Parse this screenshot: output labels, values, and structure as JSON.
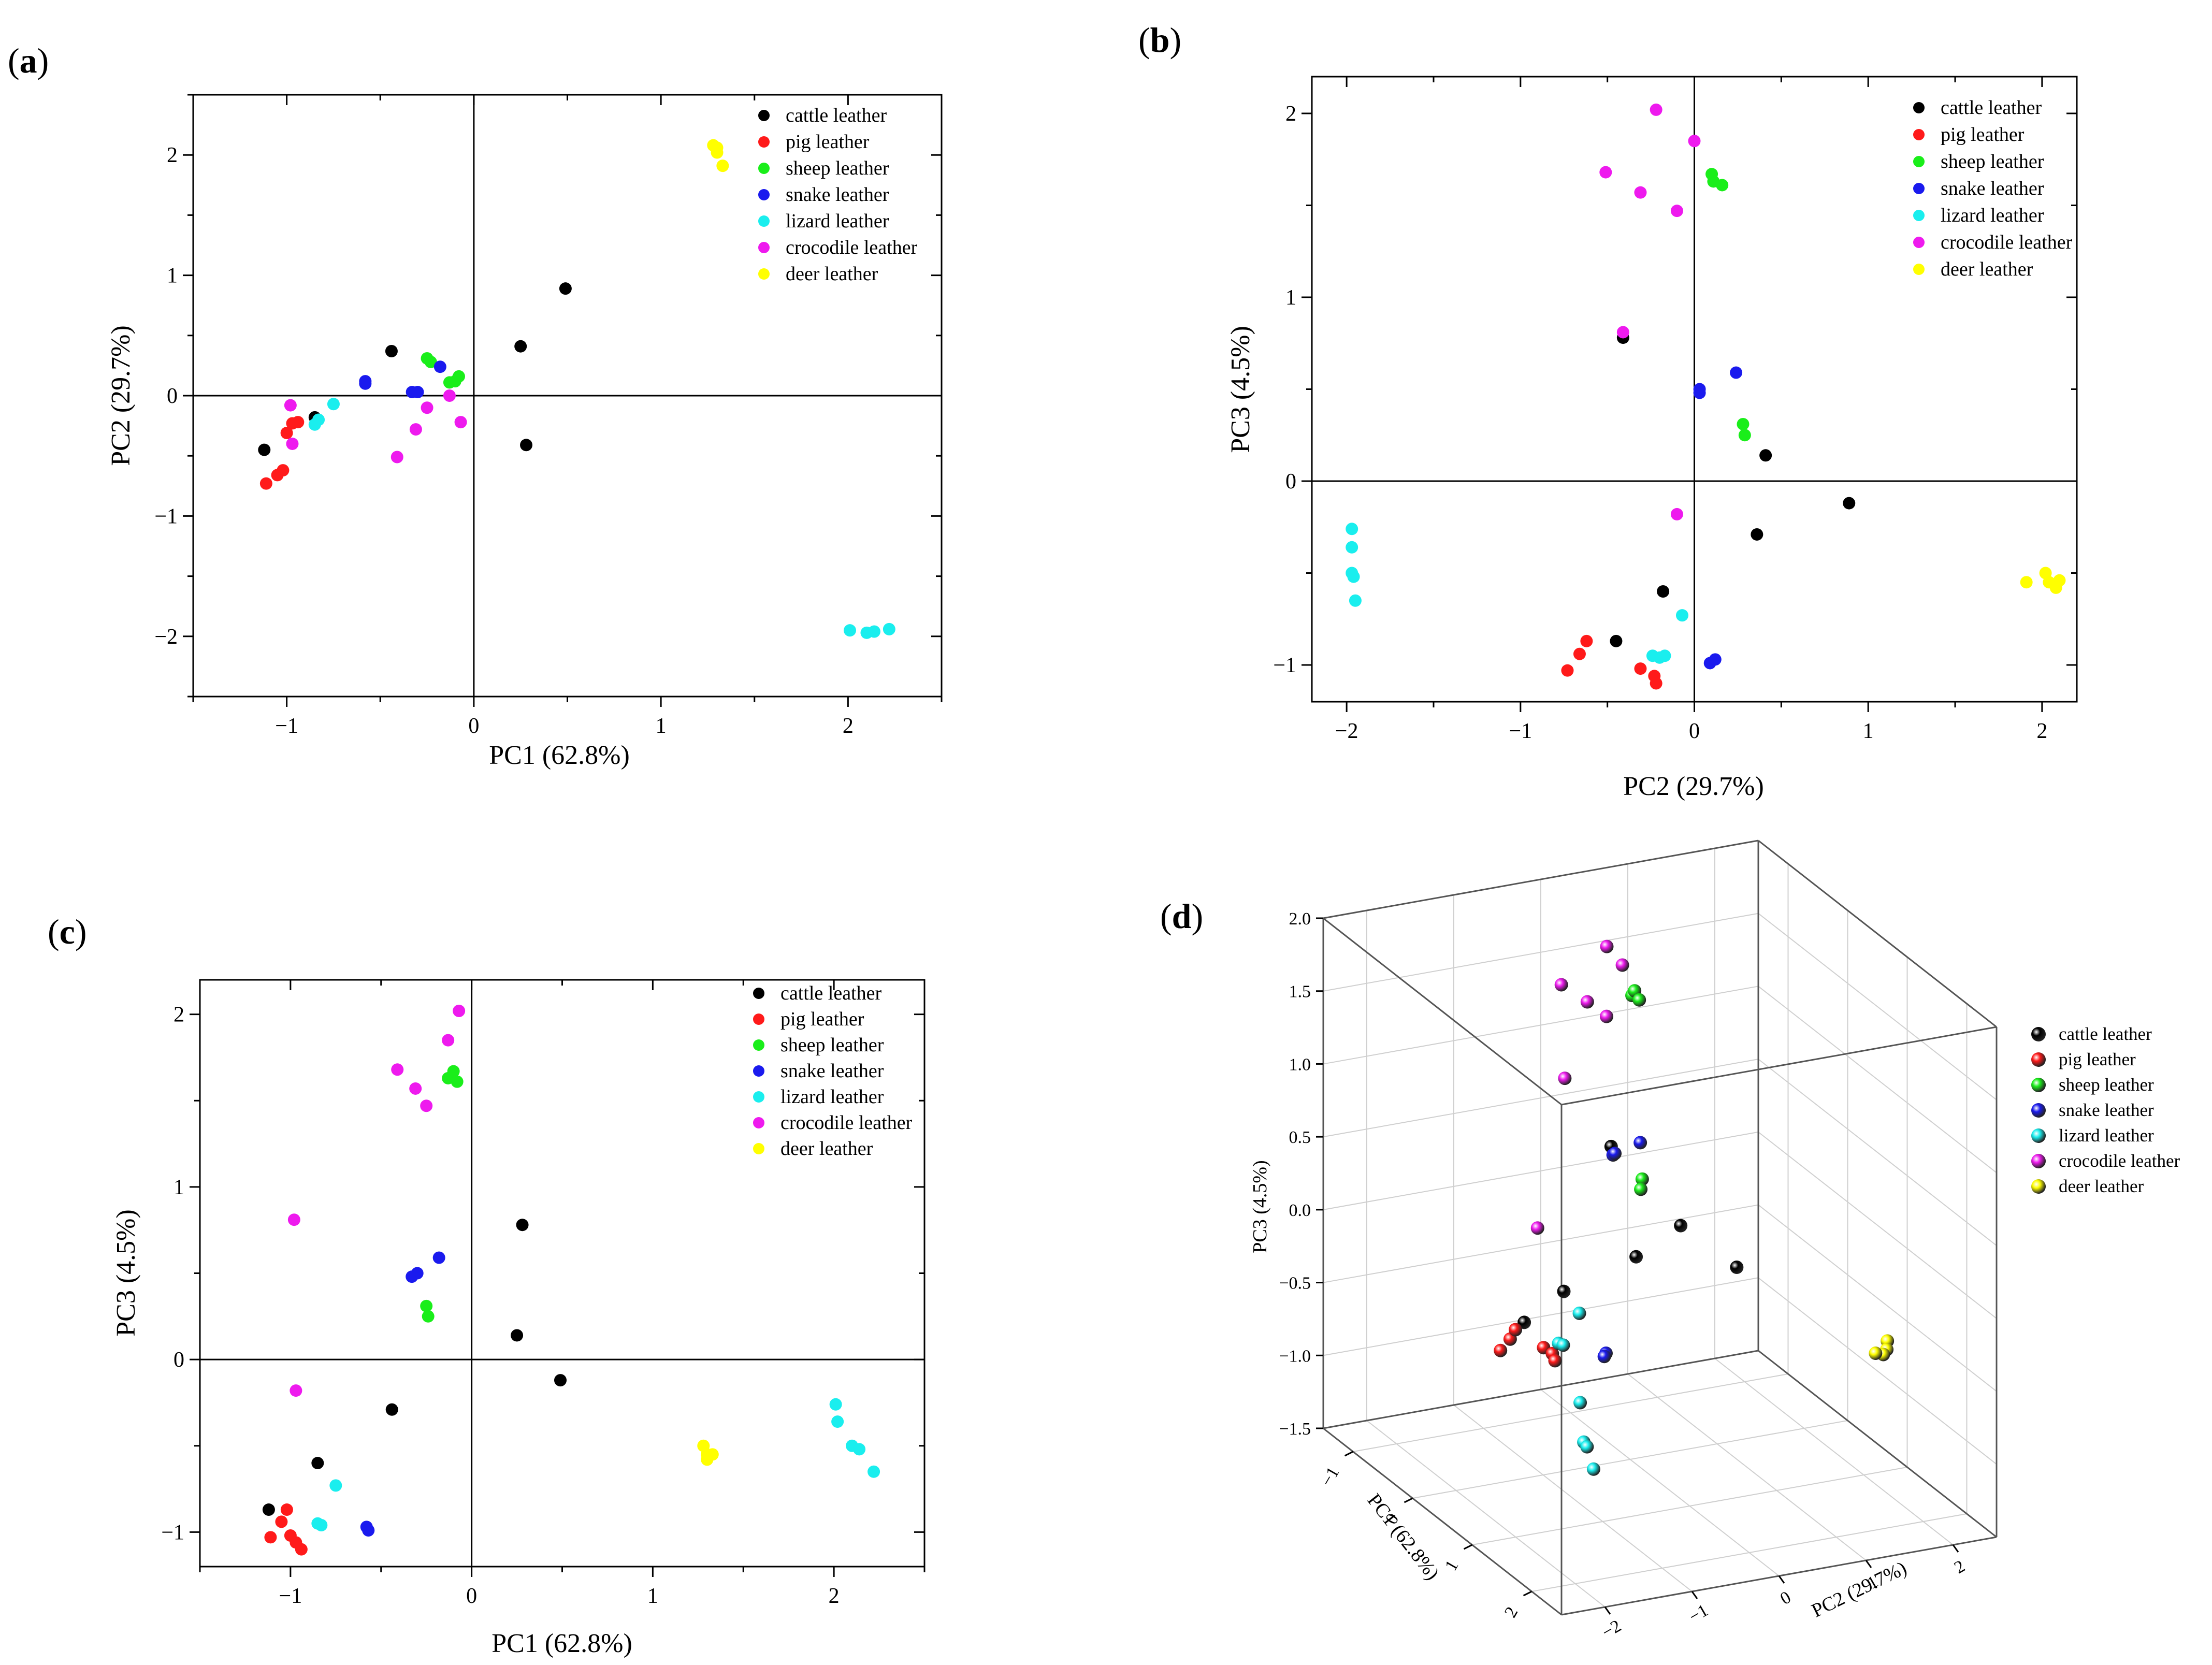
{
  "series_defs": [
    {
      "name": "cattle leather",
      "color": "#000000"
    },
    {
      "name": "pig leather",
      "color": "#ff1a1a"
    },
    {
      "name": "sheep leather",
      "color": "#1aee1a"
    },
    {
      "name": "snake leather",
      "color": "#1a1aee"
    },
    {
      "name": "lizard leather",
      "color": "#1aeeee"
    },
    {
      "name": "crocodile leather",
      "color": "#ee1aee"
    },
    {
      "name": "deer leather",
      "color": "#ffff00"
    }
  ],
  "chart_data": [
    {
      "panel": "(a)",
      "type": "scatter",
      "xlabel": "PC1 (62.8%)",
      "ylabel": "PC2 (29.7%)",
      "xlim": [
        -1.5,
        2.5
      ],
      "ylim": [
        -2.5,
        2.5
      ],
      "xticks": [
        -1,
        0,
        1,
        2
      ],
      "yticks": [
        -2,
        -1,
        0,
        1,
        2
      ],
      "xtick_labels": [
        "−1",
        "0",
        "1",
        "2"
      ],
      "ytick_labels": [
        "−2",
        "−1",
        "0",
        "1",
        "2"
      ],
      "legend": "top-right",
      "series": [
        {
          "name": "cattle leather",
          "points": [
            [
              -1.12,
              -0.45
            ],
            [
              -0.85,
              -0.18
            ],
            [
              -0.44,
              0.37
            ],
            [
              0.25,
              0.41
            ],
            [
              0.28,
              -0.41
            ],
            [
              0.49,
              0.89
            ]
          ]
        },
        {
          "name": "pig leather",
          "points": [
            [
              -1.11,
              -0.73
            ],
            [
              -1.05,
              -0.66
            ],
            [
              -1.02,
              -0.62
            ],
            [
              -1.0,
              -0.31
            ],
            [
              -0.97,
              -0.23
            ],
            [
              -0.94,
              -0.22
            ]
          ]
        },
        {
          "name": "sheep leather",
          "points": [
            [
              -0.25,
              0.31
            ],
            [
              -0.23,
              0.28
            ],
            [
              -0.13,
              0.11
            ],
            [
              -0.1,
              0.12
            ],
            [
              -0.08,
              0.16
            ]
          ]
        },
        {
          "name": "snake leather",
          "points": [
            [
              -0.58,
              0.12
            ],
            [
              -0.58,
              0.1
            ],
            [
              -0.33,
              0.03
            ],
            [
              -0.3,
              0.03
            ],
            [
              -0.18,
              0.24
            ]
          ]
        },
        {
          "name": "lizard leather",
          "points": [
            [
              -0.85,
              -0.24
            ],
            [
              -0.83,
              -0.2
            ],
            [
              -0.75,
              -0.07
            ],
            [
              2.01,
              -1.95
            ],
            [
              2.1,
              -1.97
            ],
            [
              2.14,
              -1.96
            ],
            [
              2.22,
              -1.94
            ]
          ]
        },
        {
          "name": "crocodile leather",
          "points": [
            [
              -0.98,
              -0.08
            ],
            [
              -0.97,
              -0.4
            ],
            [
              -0.41,
              -0.51
            ],
            [
              -0.31,
              -0.28
            ],
            [
              -0.25,
              -0.1
            ],
            [
              -0.13,
              0.0
            ],
            [
              -0.07,
              -0.22
            ]
          ]
        },
        {
          "name": "deer leather",
          "points": [
            [
              1.28,
              2.08
            ],
            [
              1.3,
              2.06
            ],
            [
              1.3,
              2.02
            ],
            [
              1.33,
              1.91
            ]
          ]
        }
      ]
    },
    {
      "panel": "(b)",
      "type": "scatter",
      "xlabel": "PC2 (29.7%)",
      "ylabel": "PC3 (4.5%)",
      "xlim": [
        -2.2,
        2.2
      ],
      "ylim": [
        -1.2,
        2.2
      ],
      "xticks": [
        -2,
        -1,
        0,
        1,
        2
      ],
      "yticks": [
        -1,
        0,
        1,
        2
      ],
      "xtick_labels": [
        "−2",
        "−1",
        "0",
        "1",
        "2"
      ],
      "ytick_labels": [
        "−1",
        "0",
        "1",
        "2"
      ],
      "legend": "top-right",
      "series": [
        {
          "name": "cattle leather",
          "points": [
            [
              -0.45,
              -0.87
            ],
            [
              -0.41,
              0.78
            ],
            [
              -0.18,
              -0.6
            ],
            [
              0.36,
              -0.29
            ],
            [
              0.41,
              0.14
            ],
            [
              0.89,
              -0.12
            ]
          ]
        },
        {
          "name": "pig leather",
          "points": [
            [
              -0.73,
              -1.03
            ],
            [
              -0.66,
              -0.94
            ],
            [
              -0.62,
              -0.87
            ],
            [
              -0.31,
              -1.02
            ],
            [
              -0.23,
              -1.06
            ],
            [
              -0.22,
              -1.1
            ]
          ]
        },
        {
          "name": "sheep leather",
          "points": [
            [
              0.1,
              1.67
            ],
            [
              0.11,
              1.63
            ],
            [
              0.16,
              1.61
            ],
            [
              0.28,
              0.31
            ],
            [
              0.29,
              0.25
            ]
          ]
        },
        {
          "name": "snake leather",
          "points": [
            [
              0.03,
              0.5
            ],
            [
              0.03,
              0.48
            ],
            [
              0.09,
              -0.99
            ],
            [
              0.12,
              -0.97
            ],
            [
              0.24,
              0.59
            ]
          ]
        },
        {
          "name": "lizard leather",
          "points": [
            [
              -1.97,
              -0.26
            ],
            [
              -1.97,
              -0.36
            ],
            [
              -1.97,
              -0.5
            ],
            [
              -1.96,
              -0.52
            ],
            [
              -1.95,
              -0.65
            ],
            [
              -0.24,
              -0.95
            ],
            [
              -0.2,
              -0.96
            ],
            [
              -0.17,
              -0.95
            ],
            [
              -0.07,
              -0.73
            ]
          ]
        },
        {
          "name": "crocodile leather",
          "points": [
            [
              -0.51,
              1.68
            ],
            [
              -0.41,
              0.81
            ],
            [
              -0.31,
              1.57
            ],
            [
              -0.22,
              2.02
            ],
            [
              -0.1,
              1.47
            ],
            [
              -0.1,
              -0.18
            ],
            [
              0.0,
              1.85
            ]
          ]
        },
        {
          "name": "deer leather",
          "points": [
            [
              1.91,
              -0.55
            ],
            [
              2.02,
              -0.5
            ],
            [
              2.04,
              -0.55
            ],
            [
              2.08,
              -0.58
            ],
            [
              2.1,
              -0.54
            ]
          ]
        }
      ]
    },
    {
      "panel": "(c)",
      "type": "scatter",
      "xlabel": "PC1 (62.8%)",
      "ylabel": "PC3 (4.5%)",
      "xlim": [
        -1.5,
        2.5
      ],
      "ylim": [
        -1.2,
        2.2
      ],
      "xticks": [
        -1,
        0,
        1,
        2
      ],
      "yticks": [
        -1,
        0,
        1,
        2
      ],
      "xtick_labels": [
        "−1",
        "0",
        "1",
        "2"
      ],
      "ytick_labels": [
        "−1",
        "0",
        "1",
        "2"
      ],
      "legend": "top-right",
      "series": [
        {
          "name": "cattle leather",
          "points": [
            [
              -1.12,
              -0.87
            ],
            [
              -0.85,
              -0.6
            ],
            [
              -0.44,
              -0.29
            ],
            [
              0.25,
              0.14
            ],
            [
              0.28,
              0.78
            ],
            [
              0.49,
              -0.12
            ]
          ]
        },
        {
          "name": "pig leather",
          "points": [
            [
              -1.11,
              -1.03
            ],
            [
              -1.05,
              -0.94
            ],
            [
              -1.02,
              -0.87
            ],
            [
              -1.0,
              -1.02
            ],
            [
              -0.97,
              -1.06
            ],
            [
              -0.94,
              -1.1
            ]
          ]
        },
        {
          "name": "sheep leather",
          "points": [
            [
              -0.25,
              0.31
            ],
            [
              -0.24,
              0.25
            ],
            [
              -0.13,
              1.63
            ],
            [
              -0.1,
              1.67
            ],
            [
              -0.08,
              1.61
            ]
          ]
        },
        {
          "name": "snake leather",
          "points": [
            [
              -0.58,
              -0.97
            ],
            [
              -0.57,
              -0.99
            ],
            [
              -0.33,
              0.48
            ],
            [
              -0.3,
              0.5
            ],
            [
              -0.18,
              0.59
            ]
          ]
        },
        {
          "name": "lizard leather",
          "points": [
            [
              -0.85,
              -0.95
            ],
            [
              -0.83,
              -0.96
            ],
            [
              -0.75,
              -0.73
            ],
            [
              2.01,
              -0.26
            ],
            [
              2.02,
              -0.36
            ],
            [
              2.1,
              -0.5
            ],
            [
              2.14,
              -0.52
            ],
            [
              2.22,
              -0.65
            ]
          ]
        },
        {
          "name": "crocodile leather",
          "points": [
            [
              -0.98,
              0.81
            ],
            [
              -0.97,
              -0.18
            ],
            [
              -0.41,
              1.68
            ],
            [
              -0.31,
              1.57
            ],
            [
              -0.25,
              1.47
            ],
            [
              -0.13,
              1.85
            ],
            [
              -0.07,
              2.02
            ]
          ]
        },
        {
          "name": "deer leather",
          "points": [
            [
              1.28,
              -0.5
            ],
            [
              1.3,
              -0.55
            ],
            [
              1.3,
              -0.58
            ],
            [
              1.33,
              -0.55
            ]
          ]
        }
      ]
    },
    {
      "panel": "(d)",
      "type": "scatter3d",
      "xlabel": "PC1 (62.8%)",
      "ylabel": "PC2 (29.7%)",
      "zlabel": "PC3 (4.5%)",
      "xlim": [
        -1.5,
        2.5
      ],
      "ylim": [
        -2.5,
        2.5
      ],
      "zlim": [
        -1.5,
        2.0
      ],
      "xticks": [
        -1,
        0,
        1,
        2
      ],
      "yticks": [
        -2,
        -1,
        0,
        1,
        2
      ],
      "zticks": [
        -1.5,
        -1.0,
        -0.5,
        0.0,
        0.5,
        1.0,
        1.5,
        2.0
      ],
      "xtick_labels": [
        "−1",
        "0",
        "1",
        "2"
      ],
      "ytick_labels": [
        "−2",
        "−1",
        "0",
        "1",
        "2"
      ],
      "ztick_labels": [
        "−1.5",
        "−1.0",
        "−0.5",
        "0.0",
        "0.5",
        "1.0",
        "1.5",
        "2.0"
      ],
      "legend": "right",
      "series": [
        {
          "name": "cattle leather",
          "points": [
            [
              -1.12,
              -0.45,
              -0.87
            ],
            [
              -0.85,
              -0.18,
              -0.6
            ],
            [
              -0.44,
              0.37,
              -0.29
            ],
            [
              0.25,
              0.41,
              0.14
            ],
            [
              0.28,
              -0.41,
              0.78
            ],
            [
              0.49,
              0.89,
              -0.12
            ]
          ]
        },
        {
          "name": "pig leather",
          "points": [
            [
              -1.11,
              -0.73,
              -1.03
            ],
            [
              -1.05,
              -0.66,
              -0.94
            ],
            [
              -1.02,
              -0.62,
              -0.87
            ],
            [
              -1.0,
              -0.31,
              -1.02
            ],
            [
              -0.97,
              -0.23,
              -1.06
            ],
            [
              -0.94,
              -0.22,
              -1.1
            ]
          ]
        },
        {
          "name": "sheep leather",
          "points": [
            [
              -0.25,
              0.31,
              0.31
            ],
            [
              -0.23,
              0.28,
              0.25
            ],
            [
              -0.13,
              0.11,
              1.63
            ],
            [
              -0.1,
              0.12,
              1.67
            ],
            [
              -0.08,
              0.16,
              1.61
            ]
          ]
        },
        {
          "name": "snake leather",
          "points": [
            [
              -0.58,
              0.12,
              -0.97
            ],
            [
              -0.58,
              0.1,
              -0.99
            ],
            [
              -0.33,
              0.03,
              0.48
            ],
            [
              -0.3,
              0.03,
              0.5
            ],
            [
              -0.18,
              0.24,
              0.59
            ]
          ]
        },
        {
          "name": "lizard leather",
          "points": [
            [
              -0.85,
              -0.24,
              -0.95
            ],
            [
              -0.83,
              -0.2,
              -0.96
            ],
            [
              -0.75,
              -0.07,
              -0.73
            ],
            [
              2.01,
              -1.95,
              -0.26
            ],
            [
              2.1,
              -1.97,
              -0.5
            ],
            [
              2.14,
              -1.96,
              -0.52
            ],
            [
              2.22,
              -1.94,
              -0.65
            ]
          ]
        },
        {
          "name": "crocodile leather",
          "points": [
            [
              -0.98,
              -0.08,
              0.81
            ],
            [
              -0.97,
              -0.4,
              -0.18
            ],
            [
              -0.41,
              -0.51,
              1.68
            ],
            [
              -0.31,
              -0.28,
              1.57
            ],
            [
              -0.25,
              -0.1,
              1.47
            ],
            [
              -0.13,
              0.0,
              1.85
            ],
            [
              -0.07,
              -0.22,
              2.02
            ]
          ]
        },
        {
          "name": "deer leather",
          "points": [
            [
              1.28,
              2.08,
              -0.5
            ],
            [
              1.3,
              2.06,
              -0.55
            ],
            [
              1.3,
              2.02,
              -0.58
            ],
            [
              1.33,
              1.91,
              -0.55
            ]
          ]
        }
      ]
    }
  ]
}
